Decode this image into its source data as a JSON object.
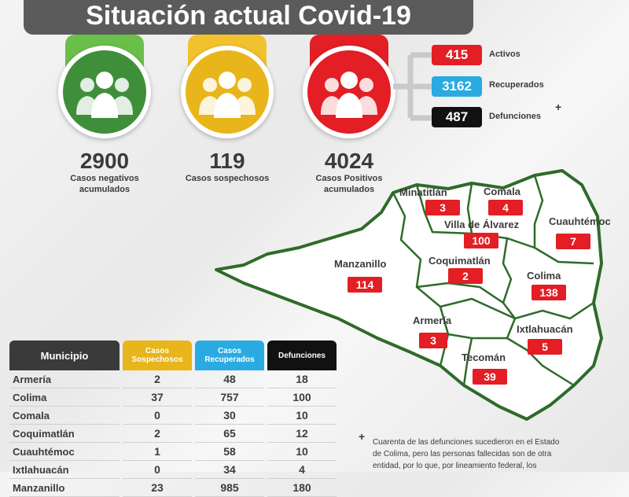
{
  "title": "Situación actual Covid-19",
  "summary": [
    {
      "number": "2900",
      "label_line1": "Casos negativos",
      "label_line2": "acumulados",
      "color": "#3f8f3a",
      "cap_color": "#6abf4b"
    },
    {
      "number": "119",
      "label_line1": "Casos sospechosos",
      "label_line2": "",
      "color": "#e8b51a",
      "cap_color": "#f2c12e"
    },
    {
      "number": "4024",
      "label_line1": "Casos Positivos",
      "label_line2": "acumulados",
      "color": "#e31e24",
      "cap_color": "#e31e24"
    }
  ],
  "breakdown": [
    {
      "value": "415",
      "label": "Activos",
      "color": "#e31e24"
    },
    {
      "value": "3162",
      "label": "Recuperados",
      "color": "#29abe2"
    },
    {
      "value": "487",
      "label": "Defunciones",
      "color": "#111111"
    }
  ],
  "defunciones_mark": "+",
  "map": {
    "municipios": [
      {
        "name": "Minatitlán",
        "value": "3"
      },
      {
        "name": "Comala",
        "value": "4"
      },
      {
        "name": "Villa de Álvarez",
        "value": "100"
      },
      {
        "name": "Cuauhtémoc",
        "value": "7"
      },
      {
        "name": "Manzanillo",
        "value": "114"
      },
      {
        "name": "Coquimatlán",
        "value": "2"
      },
      {
        "name": "Colima",
        "value": "138"
      },
      {
        "name": "Armería",
        "value": "3"
      },
      {
        "name": "Ixtlahuacán",
        "value": "5"
      },
      {
        "name": "Tecomán",
        "value": "39"
      }
    ]
  },
  "table": {
    "headers": {
      "municipio": "Municipio",
      "sospechosos_1": "Casos",
      "sospechosos_2": "Sospechosos",
      "recuperados_1": "Casos",
      "recuperados_2": "Recuperados",
      "defunciones": "Defunciones"
    },
    "header_colors": {
      "municipio": "#3a3a3a",
      "sospechosos": "#e8b51a",
      "recuperados": "#29abe2",
      "defunciones": "#111111"
    },
    "rows": [
      {
        "municipio": "Armería",
        "sospechosos": "2",
        "recuperados": "48",
        "defunciones": "18"
      },
      {
        "municipio": "Colima",
        "sospechosos": "37",
        "recuperados": "757",
        "defunciones": "100"
      },
      {
        "municipio": "Comala",
        "sospechosos": "0",
        "recuperados": "30",
        "defunciones": "10"
      },
      {
        "municipio": "Coquimatlán",
        "sospechosos": "2",
        "recuperados": "65",
        "defunciones": "12"
      },
      {
        "municipio": "Cuauhtémoc",
        "sospechosos": "1",
        "recuperados": "58",
        "defunciones": "10"
      },
      {
        "municipio": "Ixtlahuacán",
        "sospechosos": "0",
        "recuperados": "34",
        "defunciones": "4"
      },
      {
        "municipio": "Manzanillo",
        "sospechosos": "23",
        "recuperados": "985",
        "defunciones": "180"
      }
    ]
  },
  "note": {
    "mark": "+",
    "line1": "Cuarenta de las defunciones sucedieron en el Estado",
    "line2": "de Colima, pero las personas fallecidas son de otra",
    "line3": "entidad, por lo que, por lineamiento federal, los"
  }
}
